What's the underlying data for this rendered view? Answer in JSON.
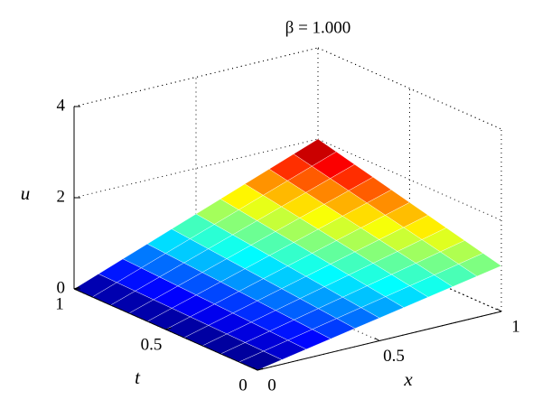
{
  "chart_data": {
    "type": "surface",
    "title": "β = 1.000",
    "x_label": "x",
    "y_label": "t",
    "z_label": "u",
    "x": [
      0,
      0.1,
      0.2,
      0.3,
      0.4,
      0.5,
      0.6,
      0.7,
      0.8,
      0.9,
      1
    ],
    "y": [
      0,
      0.1,
      0.2,
      0.3,
      0.4,
      0.5,
      0.6,
      0.7,
      0.8,
      0.9,
      1
    ],
    "z": [
      [
        0,
        0.1,
        0.2,
        0.3,
        0.4,
        0.5,
        0.6,
        0.7,
        0.8,
        0.9,
        1
      ],
      [
        0,
        0.11,
        0.22,
        0.33,
        0.44,
        0.55,
        0.66,
        0.77,
        0.88,
        0.99,
        1.1
      ],
      [
        0,
        0.12,
        0.24,
        0.36,
        0.48,
        0.6,
        0.72,
        0.84,
        0.96,
        1.08,
        1.2
      ],
      [
        0,
        0.13,
        0.26,
        0.39,
        0.52,
        0.65,
        0.78,
        0.91,
        1.04,
        1.17,
        1.3
      ],
      [
        0,
        0.14,
        0.28,
        0.42,
        0.56,
        0.7,
        0.84,
        0.98,
        1.12,
        1.26,
        1.4
      ],
      [
        0,
        0.15,
        0.3,
        0.45,
        0.6,
        0.75,
        0.9,
        1.05,
        1.2,
        1.35,
        1.5
      ],
      [
        0,
        0.16,
        0.32,
        0.48,
        0.64,
        0.8,
        0.96,
        1.12,
        1.28,
        1.44,
        1.6
      ],
      [
        0,
        0.17,
        0.34,
        0.51,
        0.68,
        0.85,
        1.02,
        1.19,
        1.36,
        1.53,
        1.7
      ],
      [
        0,
        0.18,
        0.36,
        0.54,
        0.72,
        0.9,
        1.08,
        1.26,
        1.44,
        1.62,
        1.8
      ],
      [
        0,
        0.19,
        0.38,
        0.57,
        0.76,
        0.95,
        1.14,
        1.33,
        1.52,
        1.71,
        1.9
      ],
      [
        0,
        0.2,
        0.4,
        0.6,
        0.8,
        1,
        1.2,
        1.4,
        1.6,
        1.8,
        2
      ]
    ],
    "xlim": [
      0,
      1
    ],
    "ylim": [
      0,
      1
    ],
    "zlim": [
      0,
      4
    ],
    "xticks": [
      0,
      0.5,
      1
    ],
    "yticks": [
      0,
      0.5,
      1
    ],
    "zticks": [
      0,
      2,
      4
    ],
    "colormap": "jet",
    "grid": true
  }
}
